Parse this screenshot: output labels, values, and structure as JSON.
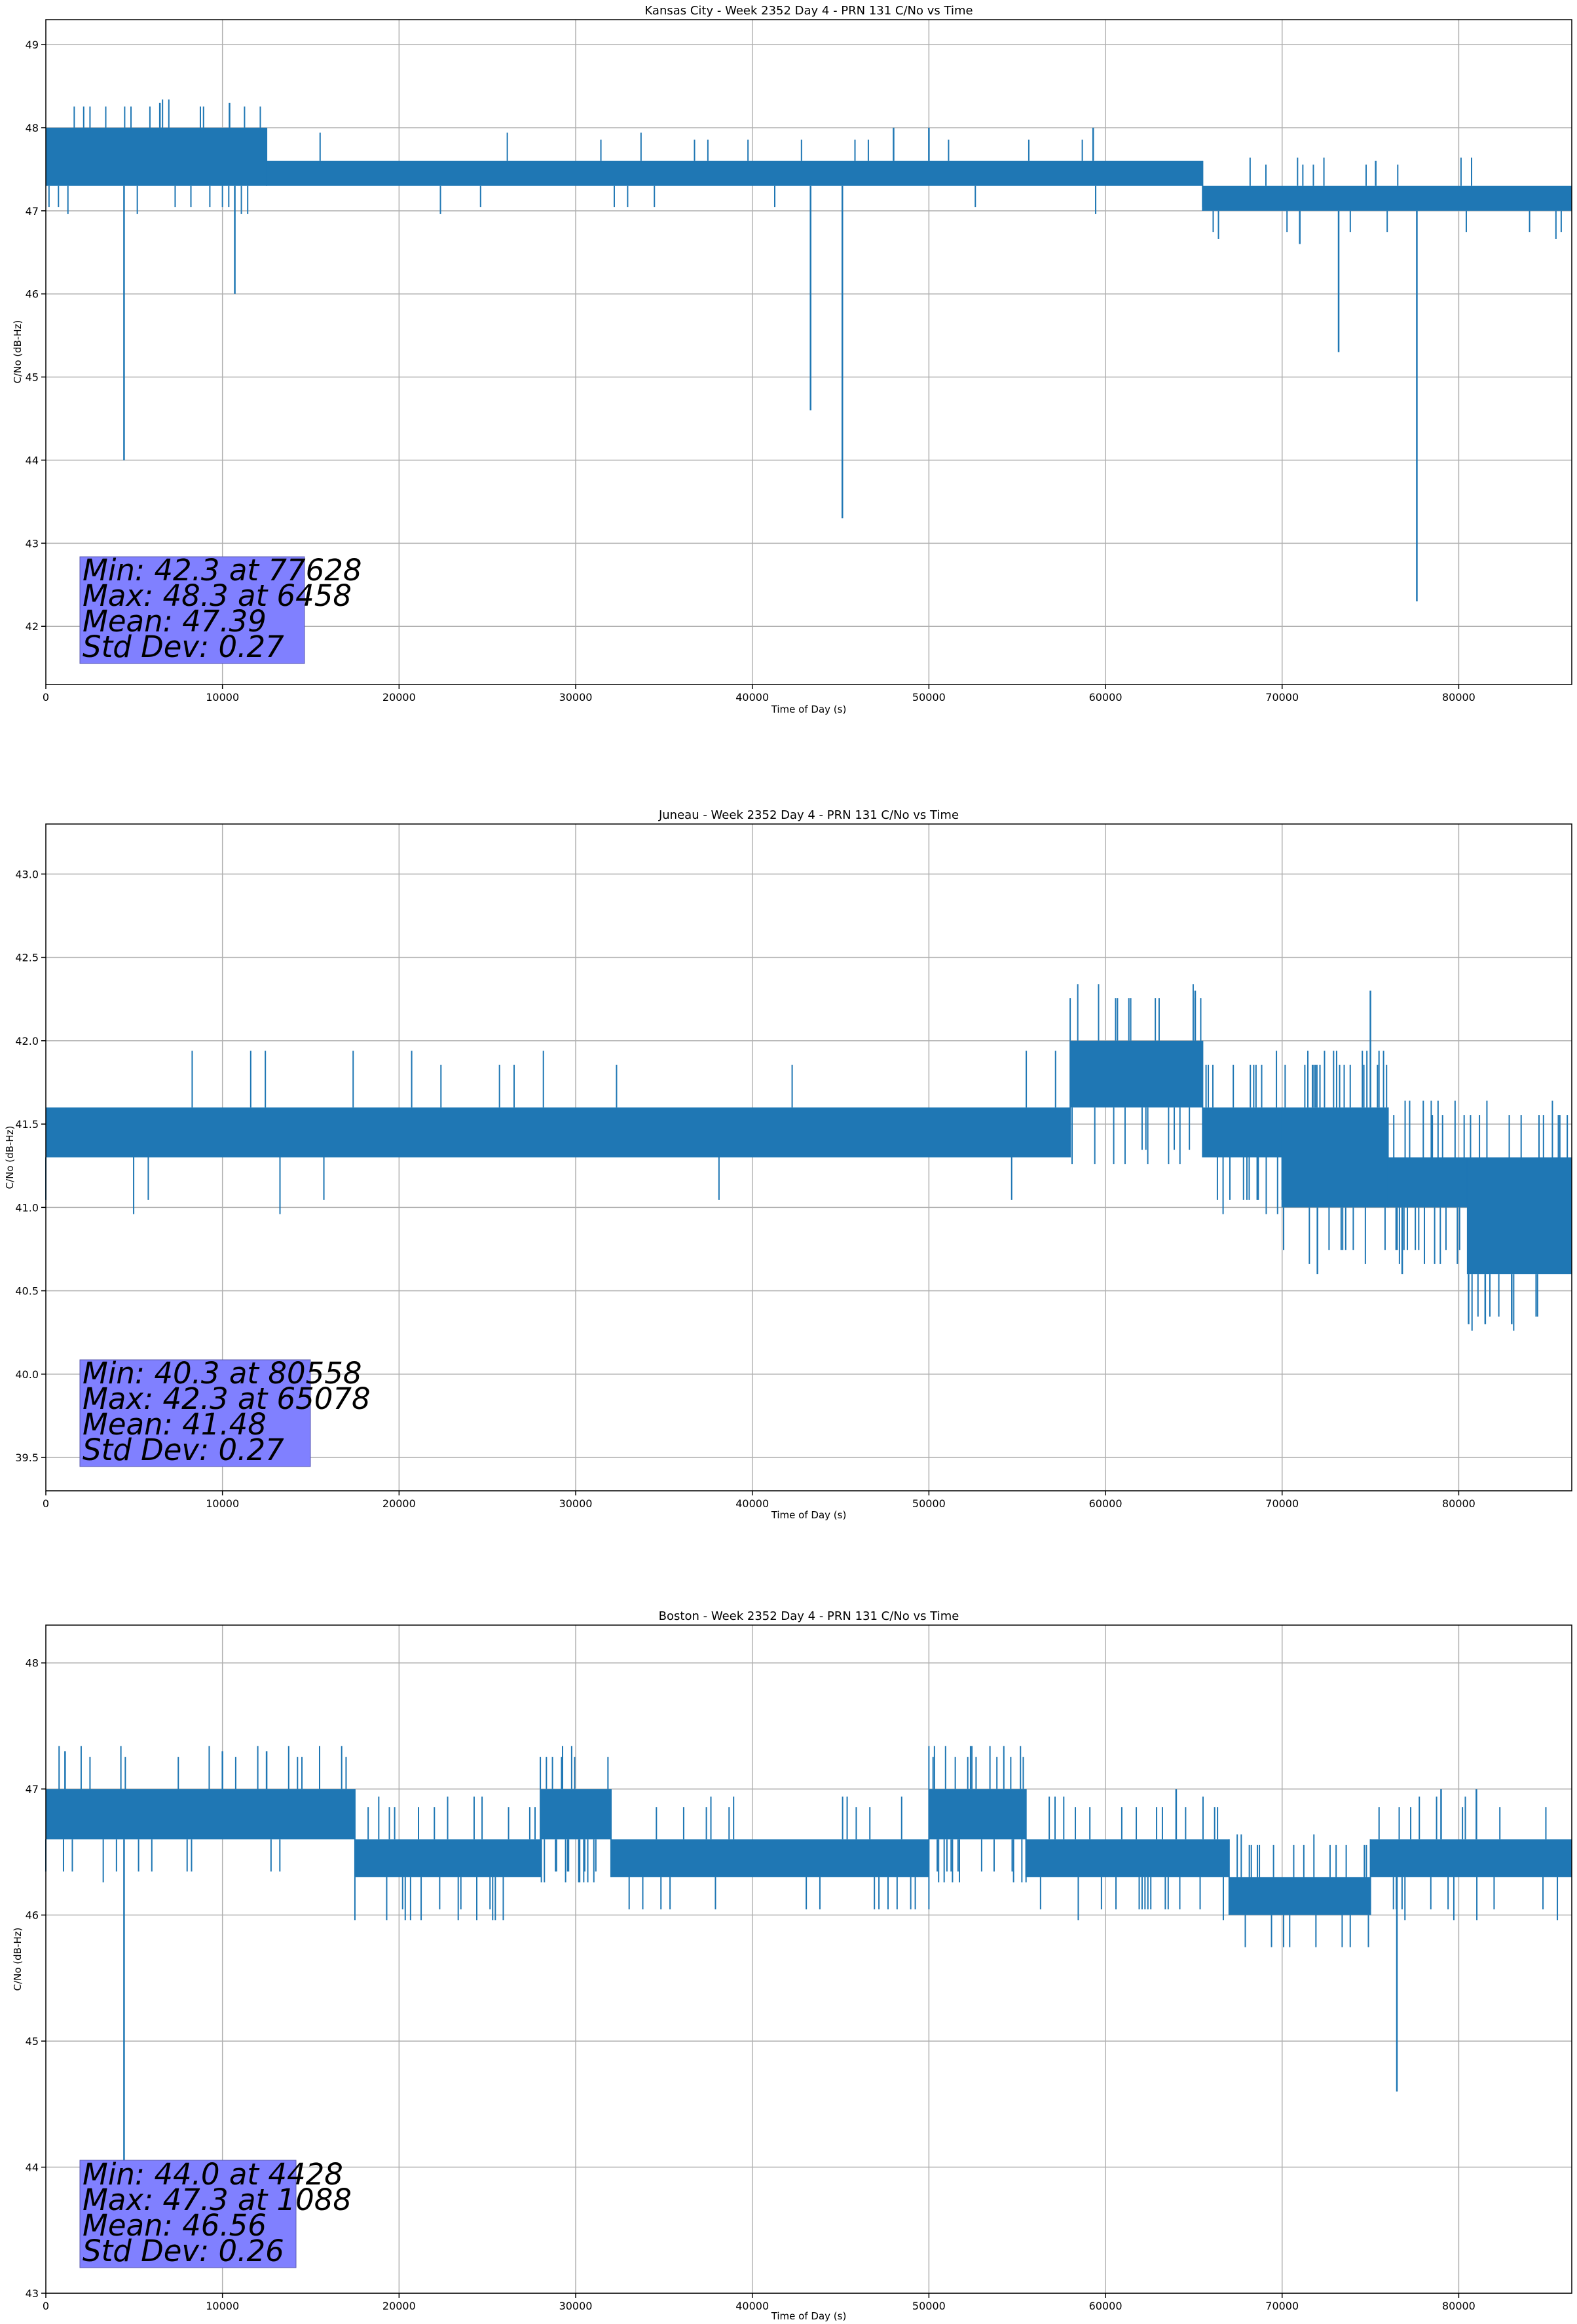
{
  "figure": {
    "background": "#ffffff",
    "line_color": "#1f77b4",
    "grid_color": "#b0b0b0",
    "stats_box_color": "#8080ff"
  },
  "chart_data": [
    {
      "type": "line",
      "title": "Kansas City - Week 2352 Day 4 - PRN 131 C/No vs Time",
      "xlabel": "Time of Day (s)",
      "ylabel": "C/No (dB-Hz)",
      "xlim": [
        0,
        86400
      ],
      "ylim": [
        41.3,
        49.3
      ],
      "xticks": [
        0,
        10000,
        20000,
        30000,
        40000,
        50000,
        60000,
        70000,
        80000
      ],
      "yticks": [
        42,
        43,
        44,
        45,
        46,
        47,
        48,
        49
      ],
      "ytick_labels": [
        "42",
        "43",
        "44",
        "45",
        "46",
        "47",
        "48",
        "49"
      ],
      "grid": true,
      "band_segments": [
        {
          "x": [
            0,
            12500
          ],
          "low": 47.3,
          "high": 48.0
        },
        {
          "x": [
            12500,
            65500
          ],
          "low": 47.3,
          "high": 47.6
        },
        {
          "x": [
            65500,
            86400
          ],
          "low": 47.0,
          "high": 47.3
        }
      ],
      "spikes": [
        {
          "x": 4428,
          "y": 44.0
        },
        {
          "x": 6458,
          "y": 48.3
        },
        {
          "x": 10400,
          "y": 48.3
        },
        {
          "x": 10700,
          "y": 46.0
        },
        {
          "x": 43300,
          "y": 44.6
        },
        {
          "x": 45100,
          "y": 43.3
        },
        {
          "x": 48000,
          "y": 48.0
        },
        {
          "x": 50000,
          "y": 48.0
        },
        {
          "x": 59300,
          "y": 48.0
        },
        {
          "x": 71000,
          "y": 46.6
        },
        {
          "x": 73200,
          "y": 45.3
        },
        {
          "x": 75300,
          "y": 47.6
        },
        {
          "x": 77628,
          "y": 42.3
        }
      ],
      "stats": [
        "Min: 42.3 at 77628",
        "Max: 48.3 at 6458",
        "Mean: 47.39",
        "Std Dev: 0.27"
      ]
    },
    {
      "type": "line",
      "title": "Juneau - Week 2352 Day 4 - PRN 131 C/No vs Time",
      "xlabel": "Time of Day (s)",
      "ylabel": "C/No (dB-Hz)",
      "xlim": [
        0,
        86400
      ],
      "ylim": [
        39.3,
        43.3
      ],
      "xticks": [
        0,
        10000,
        20000,
        30000,
        40000,
        50000,
        60000,
        70000,
        80000
      ],
      "yticks": [
        39.5,
        40.0,
        40.5,
        41.0,
        41.5,
        42.0,
        42.5,
        43.0
      ],
      "ytick_labels": [
        "39.5",
        "40.0",
        "40.5",
        "41.0",
        "41.5",
        "42.0",
        "42.5",
        "43.0"
      ],
      "grid": true,
      "band_segments": [
        {
          "x": [
            0,
            58000
          ],
          "low": 41.3,
          "high": 41.6
        },
        {
          "x": [
            58000,
            65500
          ],
          "low": 41.6,
          "high": 42.0
        },
        {
          "x": [
            65500,
            70000
          ],
          "low": 41.3,
          "high": 41.6
        },
        {
          "x": [
            70000,
            76000
          ],
          "low": 41.0,
          "high": 41.6
        },
        {
          "x": [
            76000,
            80500
          ],
          "low": 41.0,
          "high": 41.3
        },
        {
          "x": [
            80500,
            86400
          ],
          "low": 40.6,
          "high": 41.3
        }
      ],
      "spikes": [
        {
          "x": 65078,
          "y": 42.3
        },
        {
          "x": 75000,
          "y": 42.3
        },
        {
          "x": 72000,
          "y": 40.6
        },
        {
          "x": 76800,
          "y": 40.6
        },
        {
          "x": 80558,
          "y": 40.3
        },
        {
          "x": 81500,
          "y": 40.3
        },
        {
          "x": 83000,
          "y": 40.3
        }
      ],
      "stats": [
        "Min: 40.3 at 80558",
        "Max: 42.3 at 65078",
        "Mean: 41.48",
        "Std Dev: 0.27"
      ]
    },
    {
      "type": "line",
      "title": "Boston - Week 2352 Day 4 - PRN 131 C/No vs Time",
      "xlabel": "Time of Day (s)",
      "ylabel": "C/No (dB-Hz)",
      "xlim": [
        0,
        86400
      ],
      "ylim": [
        43.0,
        48.3
      ],
      "xticks": [
        0,
        10000,
        20000,
        30000,
        40000,
        50000,
        60000,
        70000,
        80000
      ],
      "yticks": [
        43,
        44,
        45,
        46,
        47,
        48
      ],
      "ytick_labels": [
        "43",
        "44",
        "45",
        "46",
        "47",
        "48"
      ],
      "grid": true,
      "band_segments": [
        {
          "x": [
            0,
            17500
          ],
          "low": 46.6,
          "high": 47.0
        },
        {
          "x": [
            17500,
            28000
          ],
          "low": 46.3,
          "high": 46.6
        },
        {
          "x": [
            28000,
            32000
          ],
          "low": 46.6,
          "high": 47.0
        },
        {
          "x": [
            32000,
            50000
          ],
          "low": 46.3,
          "high": 46.6
        },
        {
          "x": [
            50000,
            55500
          ],
          "low": 46.6,
          "high": 47.0
        },
        {
          "x": [
            55500,
            67000
          ],
          "low": 46.3,
          "high": 46.6
        },
        {
          "x": [
            67000,
            75000
          ],
          "low": 46.0,
          "high": 46.3
        },
        {
          "x": [
            75000,
            86400
          ],
          "low": 46.3,
          "high": 46.6
        }
      ],
      "spikes": [
        {
          "x": 1088,
          "y": 47.3
        },
        {
          "x": 4428,
          "y": 44.0
        },
        {
          "x": 10000,
          "y": 47.3
        },
        {
          "x": 12500,
          "y": 47.3
        },
        {
          "x": 64000,
          "y": 47.0
        },
        {
          "x": 76500,
          "y": 44.6
        },
        {
          "x": 79000,
          "y": 47.0
        },
        {
          "x": 81000,
          "y": 47.0
        }
      ],
      "stats": [
        "Min: 44.0 at 4428",
        "Max: 47.3 at 1088",
        "Mean: 46.56",
        "Std Dev: 0.26"
      ]
    }
  ]
}
